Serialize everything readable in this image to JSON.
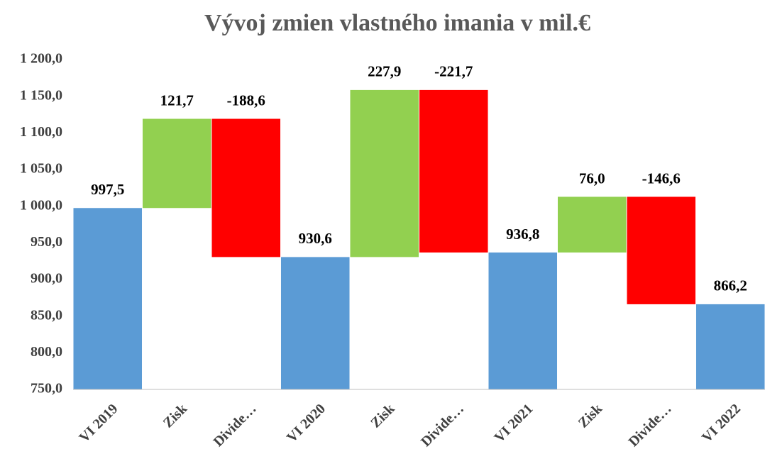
{
  "chart_data": {
    "type": "waterfall",
    "title": "Vývoj zmien vlastného imania v mil.€",
    "categories": [
      "VI 2019",
      "Zisk",
      "Divide…",
      "VI 2020",
      "Zisk",
      "Divide…",
      "VI 2021",
      "Zisk",
      "Divide…",
      "VI 2022"
    ],
    "values": [
      997.5,
      121.7,
      -188.6,
      930.6,
      227.9,
      -221.7,
      936.8,
      76.0,
      -146.6,
      866.2
    ],
    "value_labels": [
      "997,5",
      "121,7",
      "-188,6",
      "930,6",
      "227,9",
      "-221,7",
      "936,8",
      "76,0",
      "-146,6",
      "866,2"
    ],
    "total": [
      true,
      false,
      false,
      true,
      false,
      false,
      true,
      false,
      false,
      true
    ],
    "colors": {
      "total": "#5b9bd5",
      "increase": "#92d050",
      "decrease": "#ff0000"
    },
    "ylim": [
      750,
      1200
    ],
    "yticks": [
      {
        "value": 750,
        "label": "750,0"
      },
      {
        "value": 800,
        "label": "800,0"
      },
      {
        "value": 850,
        "label": "850,0"
      },
      {
        "value": 900,
        "label": "900,0"
      },
      {
        "value": 950,
        "label": "950,0"
      },
      {
        "value": 1000,
        "label": "1 000,0"
      },
      {
        "value": 1050,
        "label": "1 050,0"
      },
      {
        "value": 1100,
        "label": "1 100,0"
      },
      {
        "value": 1150,
        "label": "1 150,0"
      },
      {
        "value": 1200,
        "label": "1 200,0"
      }
    ],
    "grid": false
  }
}
